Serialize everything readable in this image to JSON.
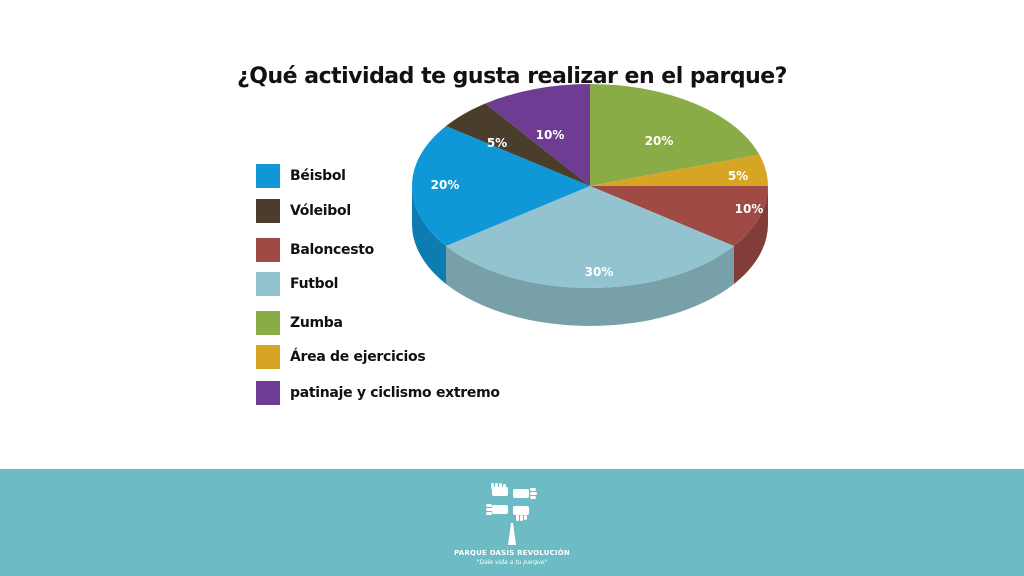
{
  "chart_data": {
    "type": "pie",
    "title": "¿Qué actividad te gusta realizar en el parque?",
    "legend_position": "left",
    "slices": [
      {
        "name": "Béisbol",
        "value": 20,
        "label": "20%",
        "color": "#0f97d8"
      },
      {
        "name": "Vóleibol",
        "value": 5,
        "label": "5%",
        "color": "#4a3d2b"
      },
      {
        "name": "Baloncesto",
        "value": 10,
        "label": "10%",
        "color": "#a04a45"
      },
      {
        "name": "Futbol",
        "value": 30,
        "label": "30%",
        "color": "#92c3ce"
      },
      {
        "name": "Zumba",
        "value": 20,
        "label": "20%",
        "color": "#8aac46"
      },
      {
        "name": "Área de ejercicios",
        "value": 5,
        "label": "5%",
        "color": "#d7a526"
      },
      {
        "name": "patinaje y ciclismo extremo",
        "value": 10,
        "label": "10%",
        "color": "#6e3c93"
      }
    ]
  },
  "footer": {
    "name": "PARQUE OASIS REVOLUCIÓN",
    "slogan": "\"Dale vida a tu parque\"",
    "background_color": "#6dbbc5",
    "logo_icon": "hands-tree-icon"
  }
}
